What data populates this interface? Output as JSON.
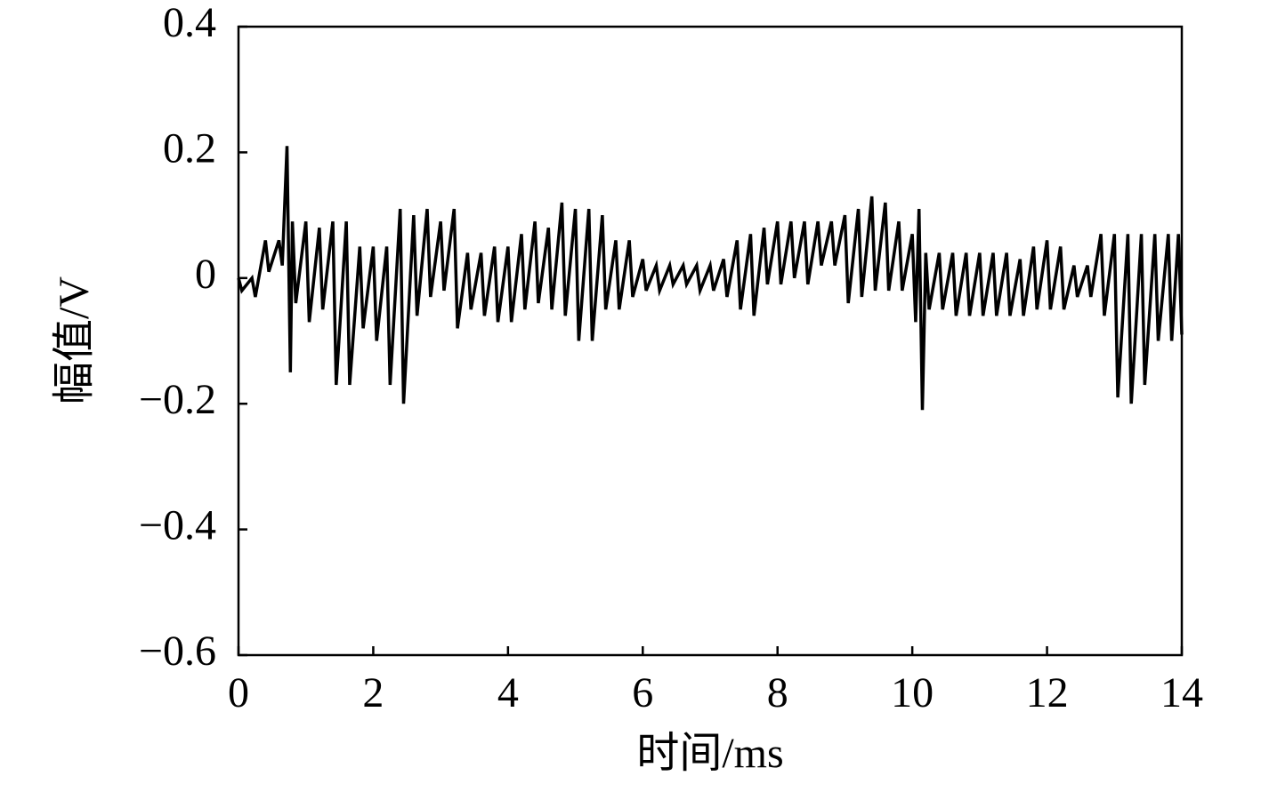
{
  "chart_data": {
    "type": "line",
    "xlabel": "时间/ms",
    "ylabel": "幅值/V",
    "xlim": [
      0,
      14
    ],
    "ylim": [
      -0.6,
      0.4
    ],
    "xticks": [
      0,
      2,
      4,
      6,
      8,
      10,
      12,
      14
    ],
    "yticks": [
      {
        "value": -0.6,
        "label": "−0.6"
      },
      {
        "value": -0.4,
        "label": "−0.4"
      },
      {
        "value": -0.2,
        "label": "−0.2"
      },
      0,
      0.2,
      0.4
    ],
    "series": [
      {
        "color": "#000000",
        "x": [
          0.0,
          0.05,
          0.2,
          0.25,
          0.4,
          0.45,
          0.6,
          0.65,
          0.72,
          0.77,
          0.8,
          0.85,
          1.0,
          1.05,
          1.2,
          1.25,
          1.4,
          1.45,
          1.6,
          1.65,
          1.8,
          1.85,
          2.0,
          2.05,
          2.2,
          2.25,
          2.4,
          2.45,
          2.6,
          2.65,
          2.8,
          2.85,
          3.0,
          3.05,
          3.2,
          3.25,
          3.4,
          3.45,
          3.6,
          3.65,
          3.8,
          3.85,
          4.0,
          4.05,
          4.2,
          4.25,
          4.4,
          4.45,
          4.6,
          4.65,
          4.8,
          4.85,
          5.0,
          5.05,
          5.2,
          5.25,
          5.4,
          5.45,
          5.6,
          5.65,
          5.8,
          5.85,
          6.0,
          6.05,
          6.2,
          6.25,
          6.4,
          6.45,
          6.6,
          6.65,
          6.8,
          6.85,
          7.0,
          7.05,
          7.2,
          7.25,
          7.4,
          7.45,
          7.6,
          7.65,
          7.8,
          7.85,
          8.0,
          8.05,
          8.2,
          8.25,
          8.4,
          8.45,
          8.6,
          8.65,
          8.8,
          8.85,
          9.0,
          9.05,
          9.2,
          9.25,
          9.4,
          9.45,
          9.6,
          9.65,
          9.8,
          9.85,
          10.0,
          10.05,
          10.1,
          10.15,
          10.2,
          10.25,
          10.4,
          10.45,
          10.6,
          10.65,
          10.8,
          10.85,
          11.0,
          11.05,
          11.2,
          11.25,
          11.4,
          11.45,
          11.6,
          11.65,
          11.8,
          11.85,
          12.0,
          12.05,
          12.2,
          12.25,
          12.4,
          12.45,
          12.6,
          12.65,
          12.8,
          12.85,
          13.0,
          13.05,
          13.2,
          13.25,
          13.4,
          13.45,
          13.6,
          13.65,
          13.8,
          13.85,
          13.95,
          14.0
        ],
        "values": [
          0.0,
          -0.02,
          0.0,
          -0.03,
          0.06,
          0.01,
          0.06,
          0.02,
          0.21,
          -0.15,
          0.09,
          -0.04,
          0.09,
          -0.07,
          0.08,
          -0.05,
          0.09,
          -0.17,
          0.09,
          -0.17,
          0.05,
          -0.08,
          0.05,
          -0.1,
          0.05,
          -0.17,
          0.11,
          -0.2,
          0.1,
          -0.06,
          0.11,
          -0.03,
          0.09,
          -0.02,
          0.11,
          -0.08,
          0.04,
          -0.05,
          0.04,
          -0.06,
          0.05,
          -0.07,
          0.05,
          -0.07,
          0.07,
          -0.05,
          0.09,
          -0.04,
          0.08,
          -0.05,
          0.12,
          -0.06,
          0.11,
          -0.1,
          0.11,
          -0.1,
          0.1,
          -0.05,
          0.06,
          -0.05,
          0.06,
          -0.03,
          0.03,
          -0.02,
          0.02,
          -0.02,
          0.02,
          -0.01,
          0.02,
          -0.01,
          0.02,
          -0.02,
          0.02,
          -0.02,
          0.03,
          -0.03,
          0.06,
          -0.05,
          0.07,
          -0.06,
          0.08,
          -0.01,
          0.09,
          -0.01,
          0.09,
          0.0,
          0.09,
          -0.01,
          0.09,
          0.02,
          0.09,
          0.02,
          0.1,
          -0.04,
          0.11,
          -0.03,
          0.13,
          -0.02,
          0.12,
          -0.02,
          0.09,
          -0.02,
          0.07,
          -0.07,
          0.11,
          -0.21,
          0.04,
          -0.05,
          0.04,
          -0.05,
          0.04,
          -0.06,
          0.04,
          -0.06,
          0.04,
          -0.06,
          0.04,
          -0.06,
          0.04,
          -0.06,
          0.03,
          -0.06,
          0.05,
          -0.05,
          0.06,
          -0.05,
          0.05,
          -0.05,
          0.02,
          -0.03,
          0.02,
          -0.03,
          0.07,
          -0.06,
          0.07,
          -0.19,
          0.07,
          -0.2,
          0.07,
          -0.17,
          0.07,
          -0.1,
          0.07,
          -0.1,
          0.07,
          -0.09
        ]
      }
    ]
  }
}
